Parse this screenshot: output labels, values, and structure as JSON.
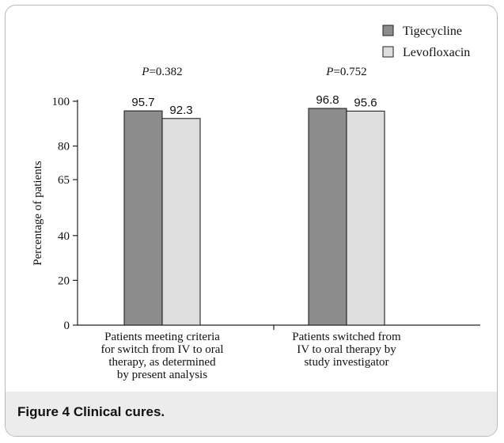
{
  "figure": {
    "label": "Figure 4",
    "title": "Clinical cures."
  },
  "chart_data": {
    "type": "bar",
    "title": "",
    "ylabel": "Percentage of patients",
    "xlabel": "",
    "ylim": [
      0,
      100
    ],
    "yticks": [
      0,
      20,
      40,
      65,
      80,
      100
    ],
    "grid": false,
    "legend_position": "top-right",
    "categories": [
      {
        "label_lines": [
          "Patients meeting criteria",
          "for switch from IV to oral",
          "therapy, as determined",
          "by present analysis"
        ],
        "p_prefix": "P",
        "p_value": "=0.382"
      },
      {
        "label_lines": [
          "Patients switched from",
          "IV to oral therapy by",
          "study investigator"
        ],
        "p_prefix": "P",
        "p_value": "=0.752"
      }
    ],
    "series": [
      {
        "name": "Tigecycline",
        "values": [
          95.7,
          96.8
        ],
        "labels": [
          "95.7",
          "96.8"
        ],
        "color": "#8c8c8c"
      },
      {
        "name": "Levofloxacin",
        "values": [
          92.3,
          95.6
        ],
        "labels": [
          "92.3",
          "95.6"
        ],
        "color": "#dedede"
      }
    ]
  }
}
